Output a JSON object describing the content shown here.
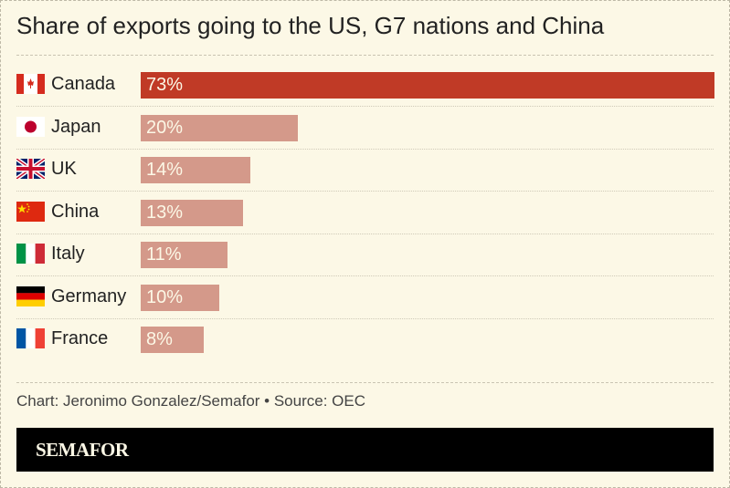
{
  "chart_data": {
    "type": "bar",
    "orientation": "horizontal",
    "title": "Share of exports going to the US, G7 nations and China",
    "categories": [
      "Canada",
      "Japan",
      "UK",
      "China",
      "Italy",
      "Germany",
      "France"
    ],
    "values": [
      73,
      20,
      14,
      13,
      11,
      10,
      8
    ],
    "value_labels": [
      "73%",
      "20%",
      "14%",
      "13%",
      "11%",
      "10%",
      "8%"
    ],
    "flags": [
      "flag-canada-icon",
      "flag-japan-icon",
      "flag-uk-icon",
      "flag-china-icon",
      "flag-italy-icon",
      "flag-germany-icon",
      "flag-france-icon"
    ],
    "xlim": [
      0,
      73
    ],
    "highlight_color": "#c03a26",
    "bar_color": "#d4998a"
  },
  "footer": {
    "credit": "Chart: Jeronimo Gonzalez/Semafor • Source: OEC",
    "brand": "SEMAFOR"
  }
}
